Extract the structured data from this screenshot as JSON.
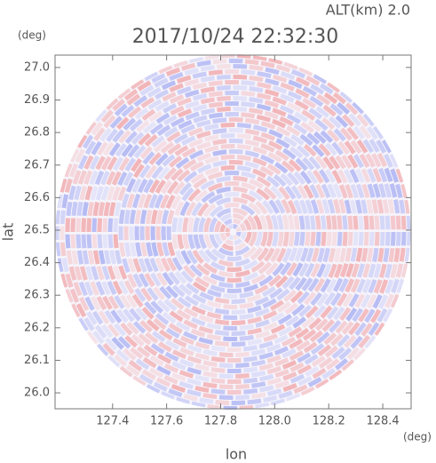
{
  "chart_data": {
    "type": "ppi",
    "title": "2017/10/24 22:32:30",
    "annotation": "ALT(km) 2.0",
    "x_label": "lon",
    "y_label": "lat",
    "x_unit": "(deg)",
    "y_unit": "(deg)",
    "xlim": [
      127.187,
      128.505
    ],
    "ylim": [
      25.951,
      27.038
    ],
    "xticks": [
      127.4,
      127.6,
      127.8,
      {
        "value": 128,
        "label": "128.0"
      },
      128.2,
      128.4
    ],
    "yticks": [
      {
        "value": 26,
        "label": "26.0"
      },
      26.1,
      26.2,
      26.3,
      26.4,
      26.5,
      26.6,
      26.7,
      26.8,
      26.9,
      {
        "value": 27,
        "label": "27.0"
      }
    ]
  }
}
